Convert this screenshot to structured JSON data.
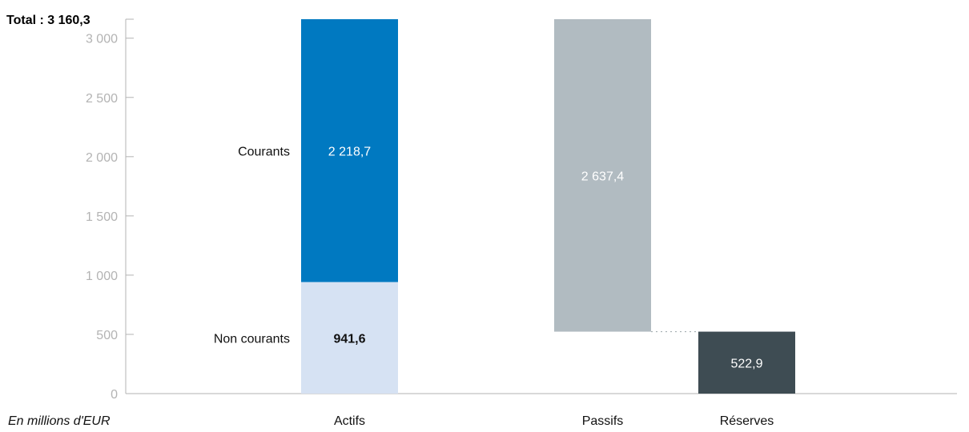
{
  "chart_data": {
    "type": "bar",
    "total_label": "Total : 3 160,3",
    "unit_label": "En millions d'EUR",
    "ylim": [
      0,
      3160.3
    ],
    "yticks": [
      {
        "value": 0,
        "label": "0"
      },
      {
        "value": 500,
        "label": "500"
      },
      {
        "value": 1000,
        "label": "1 000"
      },
      {
        "value": 1500,
        "label": "1 500"
      },
      {
        "value": 2000,
        "label": "2 000"
      },
      {
        "value": 2500,
        "label": "2 500"
      },
      {
        "value": 3000,
        "label": "3 000"
      }
    ],
    "categories": [
      "Actifs",
      "Passifs",
      "Réserves"
    ],
    "segments": [
      {
        "category": "Actifs",
        "label": "Non courants",
        "base": 0,
        "value": 941.6,
        "value_label": "941,6",
        "color": "#d6e2f3",
        "text_color": "#111111",
        "bold": true
      },
      {
        "category": "Actifs",
        "label": "Courants",
        "base": 941.6,
        "value": 2218.7,
        "value_label": "2 218,7",
        "color": "#0079c1",
        "text_color": "#ffffff",
        "bold": false
      },
      {
        "category": "Passifs",
        "label": "",
        "base": 522.9,
        "value": 2637.4,
        "value_label": "2 637,4",
        "color": "#b1bbc1",
        "text_color": "#ffffff",
        "bold": false
      },
      {
        "category": "Réserves",
        "label": "",
        "base": 0,
        "value": 522.9,
        "value_label": "522,9",
        "color": "#3e4c53",
        "text_color": "#ffffff",
        "bold": false
      }
    ],
    "connector": {
      "from": "Passifs",
      "to": "Réserves",
      "value": 522.9,
      "style": "dotted"
    },
    "grid": false
  }
}
